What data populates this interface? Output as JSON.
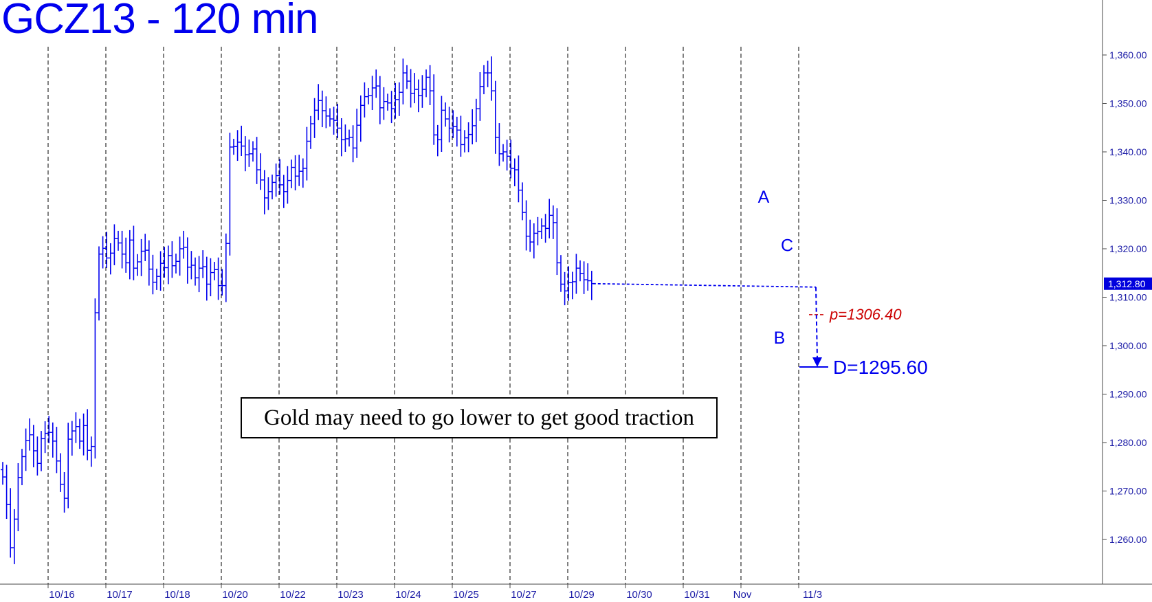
{
  "title": "GCZ13 - 120 min",
  "callout": "Gold may need to go lower to get good traction",
  "colors": {
    "bars": "#0000ee",
    "axis": "#1a1aa6",
    "target": "#cc0000",
    "grid": "#000000"
  },
  "chart_data": {
    "type": "ohlc",
    "title": "GCZ13 - 120 min",
    "ylim": [
      1251,
      1366
    ],
    "y_ticks": [
      "1,260.00",
      "1,270.00",
      "1,280.00",
      "1,290.00",
      "1,300.00",
      "1,310.00",
      "1,320.00",
      "1,330.00",
      "1,340.00",
      "1,350.00",
      "1,360.00"
    ],
    "y_tick_values": [
      1260,
      1270,
      1280,
      1290,
      1300,
      1310,
      1320,
      1330,
      1340,
      1350,
      1360
    ],
    "x_ticks": [
      "10/16",
      "10/17",
      "10/18",
      "10/20",
      "10/22",
      "10/23",
      "10/24",
      "10/25",
      "10/27",
      "10/29",
      "10/30",
      "10/31",
      "Nov",
      "11/3"
    ],
    "last_price": {
      "label": "1,312.80",
      "value": 1312.8
    },
    "wave_labels": [
      {
        "text": "A",
        "value": 1329.5
      },
      {
        "text": "B",
        "value": 1303.0
      },
      {
        "text": "C",
        "value": 1319.5
      }
    ],
    "targets": [
      {
        "text": "p=1306.40",
        "value": 1306.4
      },
      {
        "text": "D=1295.60",
        "value": 1295.6
      }
    ],
    "closes": [
      1272.9,
      1267.2,
      1258.3,
      1264.2,
      1272.8,
      1277.1,
      1280.4,
      1281.6,
      1278.3,
      1275.7,
      1280.8,
      1281.9,
      1282.1,
      1280.3,
      1276.2,
      1271.4,
      1268.5,
      1280.7,
      1282.4,
      1283.3,
      1280.3,
      1283.5,
      1278.4,
      1279.2,
      1306.8,
      1318.9,
      1320.1,
      1318.1,
      1319.1,
      1322.1,
      1321.2,
      1318.9,
      1317.1,
      1321.8,
      1316.0,
      1317.3,
      1319.5,
      1319.7,
      1315.8,
      1313.1,
      1314.3,
      1317.0,
      1316.1,
      1318.6,
      1316.5,
      1317.4,
      1320.0,
      1320.3,
      1316.2,
      1316.6,
      1314.0,
      1316.0,
      1316.3,
      1312.7,
      1315.1,
      1315.7,
      1312.4,
      1312.4,
      1321.1,
      1341.0,
      1341.1,
      1342.0,
      1341.2,
      1339.4,
      1339.6,
      1340.6,
      1336.3,
      1334.2,
      1330.5,
      1331.8,
      1333.7,
      1335.1,
      1333.2,
      1331.8,
      1334.1,
      1336.8,
      1335.0,
      1336.0,
      1336.6,
      1342.2,
      1345.8,
      1348.6,
      1350.6,
      1348.5,
      1347.4,
      1346.8,
      1346.5,
      1344.9,
      1342.5,
      1342.7,
      1343.0,
      1340.8,
      1345.5,
      1349.6,
      1351.4,
      1351.6,
      1353.2,
      1353.6,
      1349.1,
      1350.4,
      1350.1,
      1348.9,
      1350.8,
      1352.3,
      1356.3,
      1354.6,
      1352.1,
      1352.9,
      1351.6,
      1352.9,
      1355.4,
      1352.6,
      1343.5,
      1342.5,
      1348.6,
      1346.8,
      1344.9,
      1345.2,
      1344.5,
      1341.5,
      1342.9,
      1343.6,
      1345.4,
      1348.9,
      1353.5,
      1356.3,
      1356.3,
      1352.6,
      1343.0,
      1339.6,
      1340.0,
      1339.1,
      1336.6,
      1336.3,
      1332.1,
      1327.5,
      1322.6,
      1321.4,
      1323.2,
      1323.6,
      1324.7,
      1324.2,
      1326.9,
      1325.4,
      1317.1,
      1312.7,
      1311.3,
      1313.0,
      1313.2,
      1316.0,
      1314.9,
      1313.6,
      1313.4,
      1312.8
    ]
  }
}
